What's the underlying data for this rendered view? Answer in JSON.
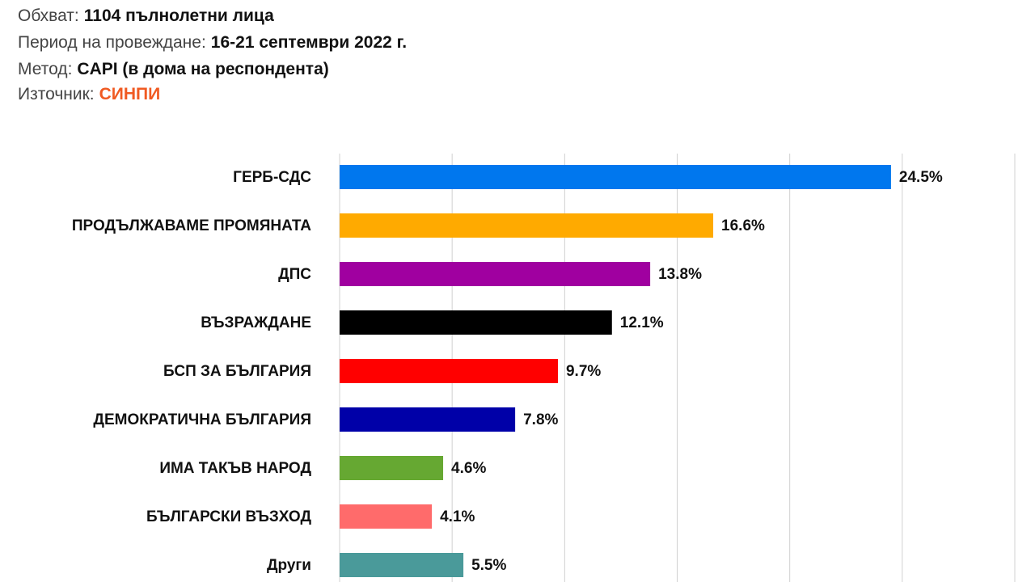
{
  "info": [
    {
      "label": "Обхват:",
      "value": "1104 пълнолетни лица"
    },
    {
      "label": "Период на провеждане:",
      "value": "16-21 септември 2022 г."
    },
    {
      "label": "Метод:",
      "value": "CAPI (в дома на респондента)"
    },
    {
      "label": "Източник:",
      "value": "СИНПИ"
    }
  ],
  "chart_data": {
    "type": "hbar",
    "categories": [
      "ГЕРБ-СДС",
      "ПРОДЪЛЖАВАМЕ ПРОМЯНАТА",
      "ДПС",
      "ВЪЗРАЖДАНЕ",
      "БСП ЗА БЪЛГАРИЯ",
      "ДЕМОКРАТИЧНА БЪЛГАРИЯ",
      "ИМА ТАКЪВ НАРОД",
      "БЪЛГАРСКИ ВЪЗХОД",
      "Други"
    ],
    "values": [
      24.5,
      16.6,
      13.8,
      12.1,
      9.7,
      7.8,
      4.6,
      4.1,
      5.5
    ],
    "value_labels": [
      "24.5%",
      "16.6%",
      "13.8%",
      "12.1%",
      "9.7%",
      "7.8%",
      "4.6%",
      "4.1%",
      "5.5%"
    ],
    "colors": [
      "#0077ee",
      "#ffaa00",
      "#a000a0",
      "#000000",
      "#ff0000",
      "#0000a8",
      "#66a832",
      "#ff6b6b",
      "#4a9a9a"
    ],
    "xlim": [
      0,
      30
    ],
    "xticks": [
      0,
      5,
      10,
      15,
      20,
      25,
      30
    ],
    "grid": true
  }
}
